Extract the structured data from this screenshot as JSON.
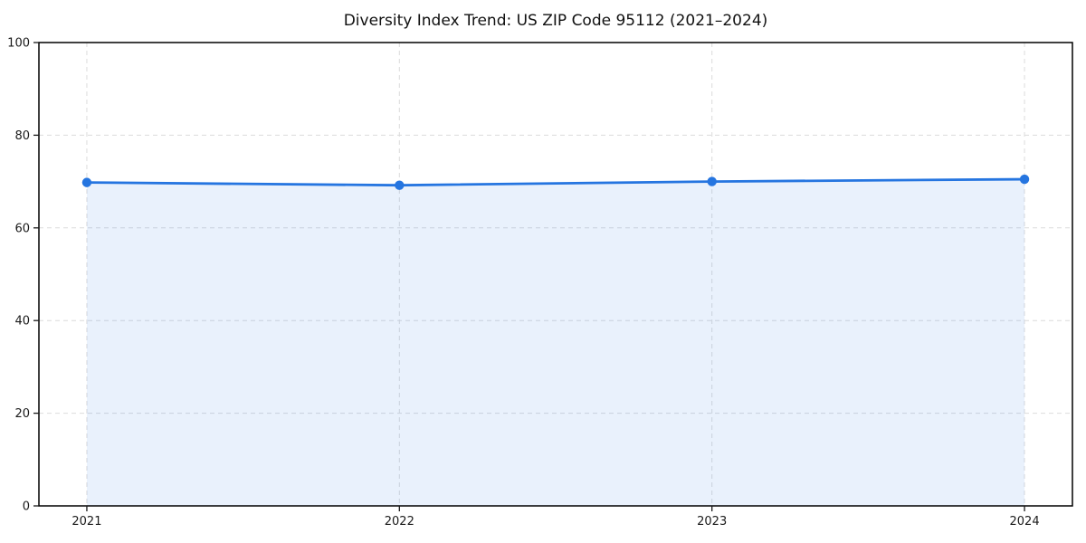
{
  "chart_data": {
    "type": "area",
    "title": "Diversity Index Trend: US ZIP Code 95112 (2021–2024)",
    "x": [
      2021,
      2022,
      2023,
      2024
    ],
    "xticks": [
      "2021",
      "2022",
      "2023",
      "2024"
    ],
    "yticks": [
      0,
      20,
      40,
      60,
      80,
      100
    ],
    "ylim": [
      0,
      100
    ],
    "series": [
      {
        "name": "Diversity Index",
        "values": [
          69.8,
          69.2,
          70.0,
          70.5
        ]
      }
    ],
    "xlabel": "",
    "ylabel": "",
    "grid": "dashed, horizontal and vertical",
    "legend": "none",
    "line_color": "#2575e0",
    "fill_color": "rgba(37,117,224,0.10)",
    "spine_color": "#000000",
    "marker": "circle"
  }
}
